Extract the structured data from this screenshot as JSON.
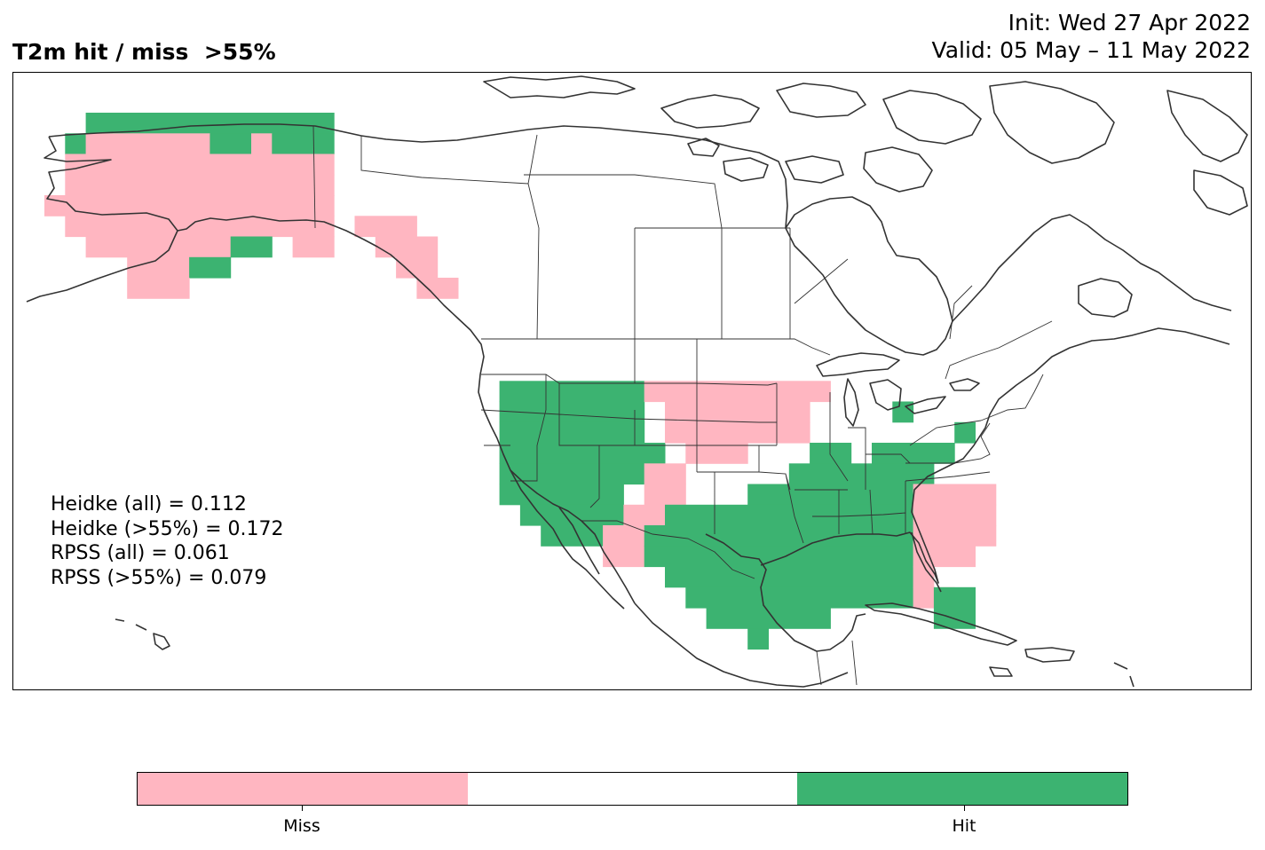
{
  "title": "T2m hit / miss  >55%",
  "init_label": "Init: Wed 27 Apr 2022",
  "valid_label": "Valid: 05 May – 11 May 2022",
  "colors": {
    "miss": "#ffb6c1",
    "neutral": "#ffffff",
    "hit": "#3cb371",
    "coastline": "#333333"
  },
  "stats": [
    "Heidke (all) = 0.112",
    "Heidke (>55%) = 0.172",
    "RPSS (all) = 0.061",
    "RPSS (>55%) = 0.079"
  ],
  "legend": {
    "labels": [
      "Miss",
      "Hit"
    ],
    "segments": [
      "miss",
      "neutral",
      "hit"
    ]
  }
}
